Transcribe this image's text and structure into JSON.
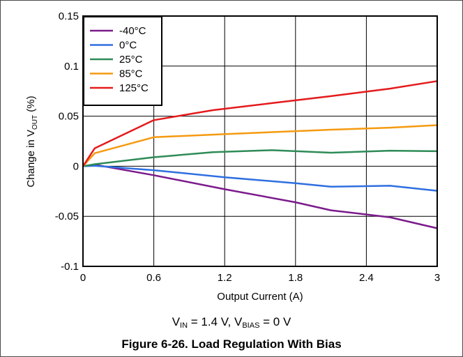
{
  "caption": {
    "conditions_vin_label": "V",
    "conditions_vin_sub": "IN",
    "conditions_vin_value": " = 1.4 V, ",
    "conditions_vbias_label": "V",
    "conditions_vbias_sub": "BIAS",
    "conditions_vbias_value": " = 0 V",
    "figure_title": "Figure 6-26. Load Regulation With Bias"
  },
  "chart_data": {
    "type": "line",
    "xlabel": "Output Current (A)",
    "ylabel_main": "Change in V",
    "ylabel_sub": "OUT",
    "ylabel_unit": " (%)",
    "xlim": [
      0,
      3
    ],
    "ylim": [
      -0.1,
      0.15
    ],
    "x_ticks": [
      0,
      0.6,
      1.2,
      1.8,
      2.4,
      3
    ],
    "x_tick_labels": [
      "0",
      "0.6",
      "1.2",
      "1.8",
      "2.4",
      "3"
    ],
    "y_ticks": [
      -0.1,
      -0.05,
      0,
      0.05,
      0.1,
      0.15
    ],
    "y_tick_labels": [
      "-0.1",
      "-0.05",
      "0",
      "0.05",
      "0.1",
      "0.15"
    ],
    "grid": true,
    "legend_position": "top-left",
    "series": [
      {
        "name": "-40°C",
        "color": "#7b1a8c",
        "x": [
          0,
          0.1,
          0.6,
          1.2,
          1.8,
          2.1,
          2.6,
          3.0
        ],
        "y": [
          0,
          0.0015,
          -0.009,
          -0.023,
          -0.036,
          -0.044,
          -0.051,
          -0.062
        ]
      },
      {
        "name": "0°C",
        "color": "#2f6fe0",
        "x": [
          0,
          0.1,
          0.6,
          1.2,
          1.8,
          2.1,
          2.6,
          3.0
        ],
        "y": [
          0,
          0.0005,
          -0.004,
          -0.011,
          -0.017,
          -0.0205,
          -0.0195,
          -0.0245
        ]
      },
      {
        "name": "25°C",
        "color": "#2e8b57",
        "x": [
          0,
          0.1,
          0.6,
          1.1,
          1.6,
          2.1,
          2.6,
          3.0
        ],
        "y": [
          0,
          0.002,
          0.009,
          0.014,
          0.016,
          0.0135,
          0.0155,
          0.015
        ]
      },
      {
        "name": "85°C",
        "color": "#f59a10",
        "x": [
          0,
          0.1,
          0.6,
          1.2,
          1.8,
          2.1,
          2.6,
          3.0
        ],
        "y": [
          0,
          0.013,
          0.029,
          0.032,
          0.035,
          0.0365,
          0.0385,
          0.041
        ]
      },
      {
        "name": "125°C",
        "color": "#e41a1c",
        "x": [
          0,
          0.1,
          0.6,
          1.1,
          1.6,
          2.1,
          2.6,
          3.0
        ],
        "y": [
          0,
          0.018,
          0.046,
          0.056,
          0.063,
          0.07,
          0.0775,
          0.085
        ]
      }
    ]
  }
}
